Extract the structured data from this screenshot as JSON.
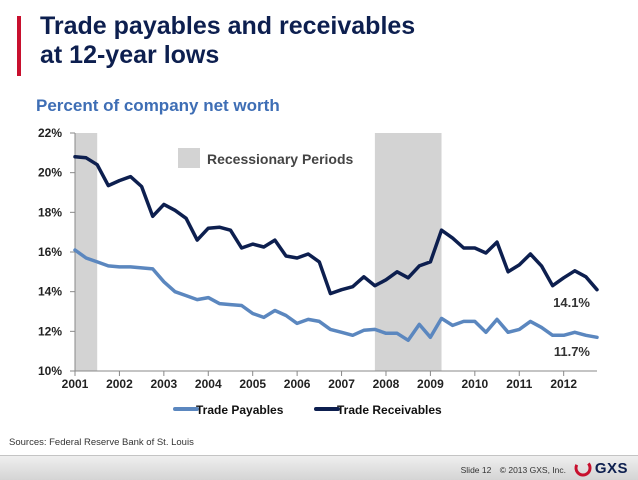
{
  "slide": {
    "title_line1": "Trade payables and receivables",
    "title_line2": "at 12-year lows",
    "subtitle": "Percent of company net worth",
    "sources": "Sources: Federal Reserve Bank of St. Louis",
    "slide_number": "Slide 12",
    "copyright": "© 2013 GXS, Inc.",
    "logo_text": "GXS",
    "colors": {
      "title": "#0d1f4f",
      "subtitle": "#3e6eb5",
      "accent": "#c8102e"
    }
  },
  "chart_data": {
    "type": "line",
    "title": "Percent of company net worth",
    "xlabel": "",
    "ylabel": "",
    "x_range": [
      2001.0,
      2012.75
    ],
    "ylim": [
      10,
      22
    ],
    "y_ticks": [
      "10%",
      "12%",
      "14%",
      "16%",
      "18%",
      "20%",
      "22%"
    ],
    "x_ticks": [
      "2001",
      "2002",
      "2003",
      "2004",
      "2005",
      "2006",
      "2007",
      "2008",
      "2009",
      "2010",
      "2011",
      "2012"
    ],
    "grid": false,
    "legend_position": "bottom",
    "recessions": [
      [
        2001.0,
        2001.5
      ],
      [
        2007.75,
        2009.25
      ]
    ],
    "recession_label": "Recessionary Periods",
    "series": [
      {
        "name": "Trade Payables",
        "color": "#5b87bf",
        "end_label": "11.7%",
        "x": [
          2001.0,
          2001.25,
          2001.5,
          2001.75,
          2002.0,
          2002.25,
          2002.5,
          2002.75,
          2003.0,
          2003.25,
          2003.5,
          2003.75,
          2004.0,
          2004.25,
          2004.5,
          2004.75,
          2005.0,
          2005.25,
          2005.5,
          2005.75,
          2006.0,
          2006.25,
          2006.5,
          2006.75,
          2007.0,
          2007.25,
          2007.5,
          2007.75,
          2008.0,
          2008.25,
          2008.5,
          2008.75,
          2009.0,
          2009.25,
          2009.5,
          2009.75,
          2010.0,
          2010.25,
          2010.5,
          2010.75,
          2011.0,
          2011.25,
          2011.5,
          2011.75,
          2012.0,
          2012.25,
          2012.5,
          2012.75
        ],
        "y": [
          16.1,
          15.7,
          15.5,
          15.3,
          15.25,
          15.25,
          15.2,
          15.15,
          14.5,
          14.0,
          13.8,
          13.6,
          13.7,
          13.4,
          13.35,
          13.3,
          12.9,
          12.7,
          13.05,
          12.8,
          12.4,
          12.6,
          12.5,
          12.1,
          11.95,
          11.8,
          12.05,
          12.1,
          11.9,
          11.9,
          11.55,
          12.35,
          11.7,
          12.65,
          12.3,
          12.5,
          12.5,
          11.95,
          12.6,
          11.95,
          12.1,
          12.5,
          12.2,
          11.8,
          11.8,
          11.95,
          11.8,
          11.7
        ]
      },
      {
        "name": "Trade Receivables",
        "color": "#0d1f4f",
        "end_label": "14.1%",
        "x": [
          2001.0,
          2001.25,
          2001.5,
          2001.75,
          2002.0,
          2002.25,
          2002.5,
          2002.75,
          2003.0,
          2003.25,
          2003.5,
          2003.75,
          2004.0,
          2004.25,
          2004.5,
          2004.75,
          2005.0,
          2005.25,
          2005.5,
          2005.75,
          2006.0,
          2006.25,
          2006.5,
          2006.75,
          2007.0,
          2007.25,
          2007.5,
          2007.75,
          2008.0,
          2008.25,
          2008.5,
          2008.75,
          2009.0,
          2009.25,
          2009.5,
          2009.75,
          2010.0,
          2010.25,
          2010.5,
          2010.75,
          2011.0,
          2011.25,
          2011.5,
          2011.75,
          2012.0,
          2012.25,
          2012.5,
          2012.75
        ],
        "y": [
          20.8,
          20.75,
          20.4,
          19.35,
          19.6,
          19.8,
          19.3,
          17.8,
          18.4,
          18.1,
          17.7,
          16.6,
          17.2,
          17.25,
          17.1,
          16.2,
          16.4,
          16.25,
          16.6,
          15.8,
          15.7,
          15.9,
          15.5,
          13.9,
          14.1,
          14.25,
          14.75,
          14.3,
          14.6,
          15.0,
          14.7,
          15.3,
          15.5,
          17.1,
          16.7,
          16.2,
          16.2,
          15.95,
          16.5,
          15.0,
          15.35,
          15.9,
          15.3,
          14.3,
          14.7,
          15.05,
          14.75,
          14.1
        ]
      }
    ]
  }
}
